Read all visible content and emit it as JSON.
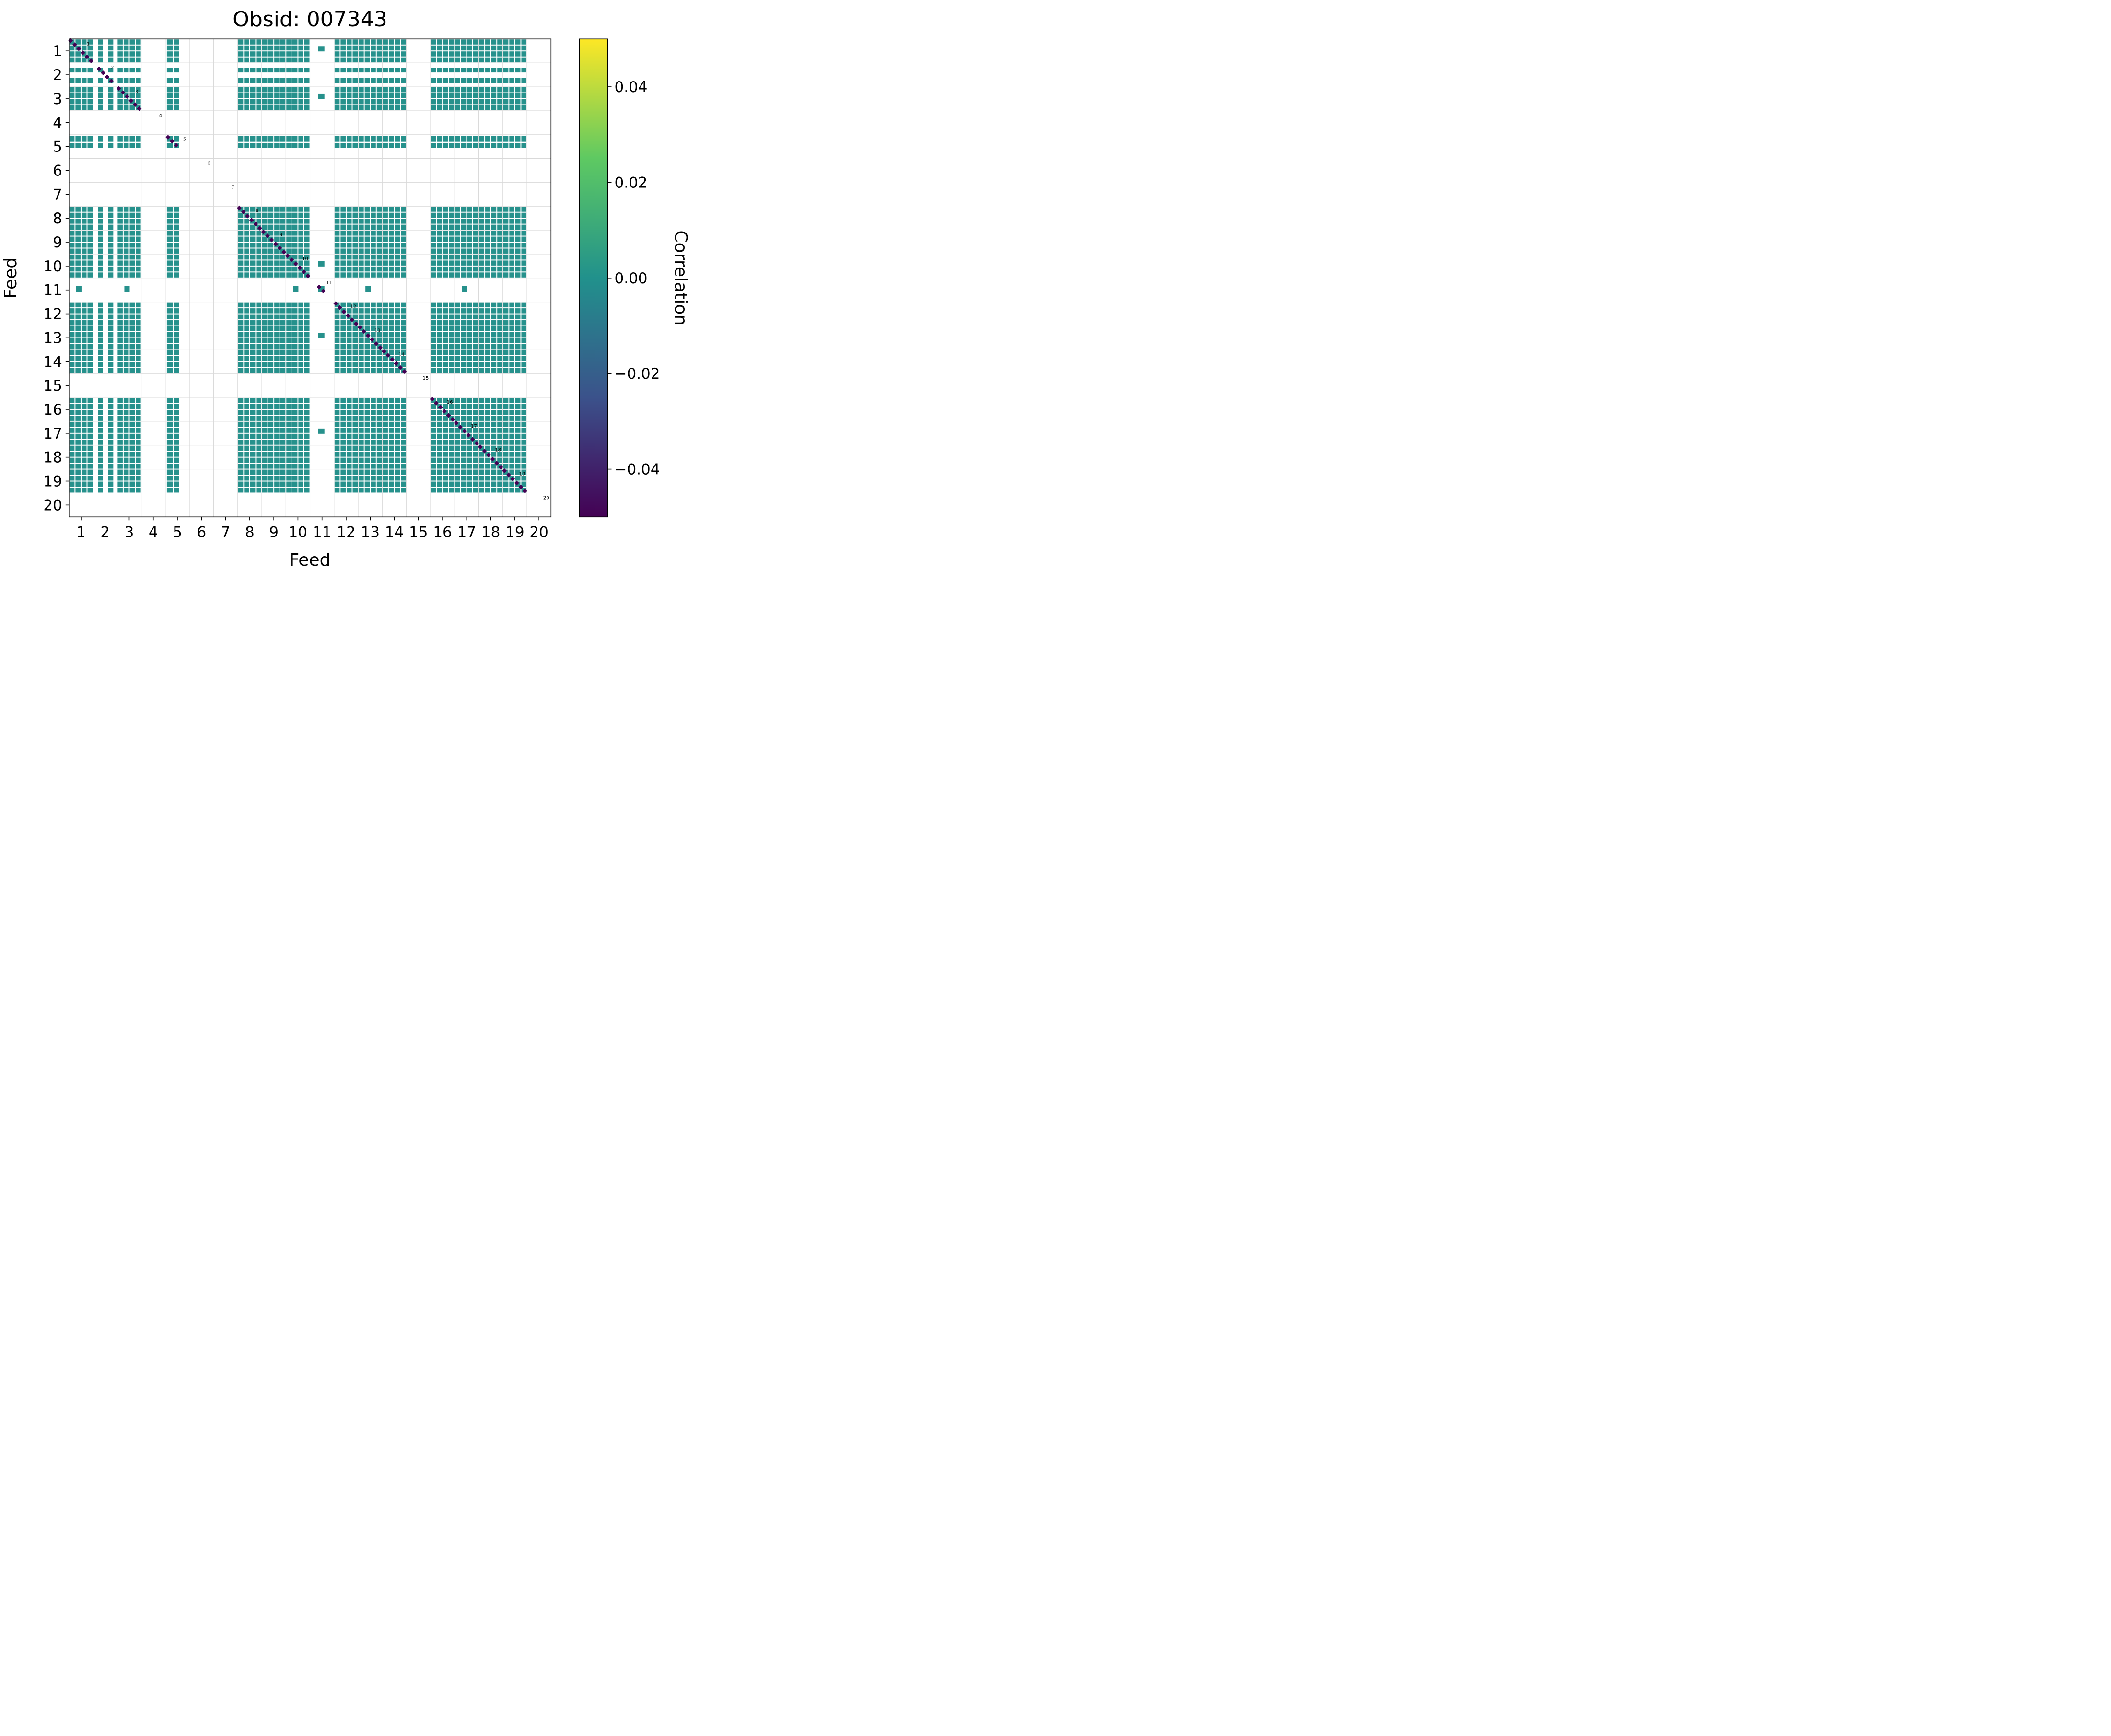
{
  "figure": {
    "title": "Obsid: 007343"
  },
  "chart_data": {
    "type": "heatmap",
    "title": "Obsid: 007343",
    "xlabel": "Feed",
    "ylabel": "Feed",
    "feed_count": 20,
    "x_ticks": [
      1,
      2,
      3,
      4,
      5,
      6,
      7,
      8,
      9,
      10,
      11,
      12,
      13,
      14,
      15,
      16,
      17,
      18,
      19,
      20
    ],
    "y_ticks": [
      1,
      2,
      3,
      4,
      5,
      6,
      7,
      8,
      9,
      10,
      11,
      12,
      13,
      14,
      15,
      16,
      17,
      18,
      19,
      20
    ],
    "present_feeds": [
      1,
      2,
      3,
      5,
      8,
      9,
      10,
      11,
      12,
      13,
      14,
      16,
      17,
      18,
      19
    ],
    "missing_feeds": [
      4,
      6,
      7,
      15,
      20
    ],
    "block_value": 0.0,
    "diagonal_value": -0.05,
    "grid": true,
    "colorbar": {
      "label": "Correlation",
      "ticks": [
        "0.04",
        "0.02",
        "0.00",
        "−0.02",
        "−0.04"
      ],
      "tick_values": [
        0.04,
        0.02,
        0.0,
        -0.02,
        -0.04
      ],
      "vmin": -0.05,
      "vmax": 0.05,
      "colormap": "viridis"
    },
    "colors": {
      "cell": "#26918c",
      "diagonal": "#440154",
      "grid": "#d9d9d9",
      "viridis_stops": [
        "#fde725",
        "#5ec962",
        "#21918c",
        "#3b528b",
        "#440154"
      ]
    },
    "feeds": [
      {
        "id": 1,
        "bands": [
          [
            0.02,
            0.23
          ],
          [
            0.27,
            0.48
          ],
          [
            0.52,
            0.73
          ],
          [
            0.77,
            0.98
          ]
        ]
      },
      {
        "id": 2,
        "bands": [
          [
            0.2,
            0.4
          ],
          [
            0.62,
            0.84
          ]
        ]
      },
      {
        "id": 3,
        "bands": [
          [
            0.02,
            0.23
          ],
          [
            0.27,
            0.48
          ],
          [
            0.52,
            0.73
          ],
          [
            0.77,
            0.98
          ]
        ]
      },
      {
        "id": 4,
        "bands": []
      },
      {
        "id": 5,
        "bands": [
          [
            0.06,
            0.3
          ],
          [
            0.36,
            0.56
          ]
        ]
      },
      {
        "id": 6,
        "bands": []
      },
      {
        "id": 7,
        "bands": []
      },
      {
        "id": 8,
        "bands": [
          [
            0.02,
            0.23
          ],
          [
            0.27,
            0.48
          ],
          [
            0.52,
            0.73
          ],
          [
            0.77,
            0.98
          ]
        ]
      },
      {
        "id": 9,
        "bands": [
          [
            0.02,
            0.23
          ],
          [
            0.27,
            0.48
          ],
          [
            0.52,
            0.73
          ],
          [
            0.77,
            0.98
          ]
        ]
      },
      {
        "id": 10,
        "bands": [
          [
            0.02,
            0.23
          ],
          [
            0.27,
            0.48
          ],
          [
            0.52,
            0.73
          ],
          [
            0.77,
            0.98
          ]
        ]
      },
      {
        "id": 11,
        "bands": [
          [
            0.33,
            0.6
          ]
        ],
        "partners": [
          1,
          3,
          10,
          11,
          13,
          17
        ]
      },
      {
        "id": 12,
        "bands": [
          [
            0.02,
            0.23
          ],
          [
            0.27,
            0.48
          ],
          [
            0.52,
            0.73
          ],
          [
            0.77,
            0.98
          ]
        ]
      },
      {
        "id": 13,
        "bands": [
          [
            0.02,
            0.23
          ],
          [
            0.27,
            0.48
          ],
          [
            0.52,
            0.73
          ],
          [
            0.77,
            0.98
          ]
        ]
      },
      {
        "id": 14,
        "bands": [
          [
            0.02,
            0.23
          ],
          [
            0.27,
            0.48
          ],
          [
            0.52,
            0.73
          ],
          [
            0.77,
            0.98
          ]
        ]
      },
      {
        "id": 15,
        "bands": []
      },
      {
        "id": 16,
        "bands": [
          [
            0.02,
            0.23
          ],
          [
            0.27,
            0.48
          ],
          [
            0.52,
            0.73
          ],
          [
            0.77,
            0.98
          ]
        ]
      },
      {
        "id": 17,
        "bands": [
          [
            0.02,
            0.23
          ],
          [
            0.27,
            0.48
          ],
          [
            0.52,
            0.73
          ],
          [
            0.77,
            0.98
          ]
        ]
      },
      {
        "id": 18,
        "bands": [
          [
            0.02,
            0.23
          ],
          [
            0.27,
            0.48
          ],
          [
            0.52,
            0.73
          ],
          [
            0.77,
            0.98
          ]
        ]
      },
      {
        "id": 19,
        "bands": [
          [
            0.02,
            0.23
          ],
          [
            0.27,
            0.48
          ],
          [
            0.52,
            0.73
          ],
          [
            0.77,
            0.98
          ]
        ]
      },
      {
        "id": 20,
        "bands": []
      }
    ]
  }
}
